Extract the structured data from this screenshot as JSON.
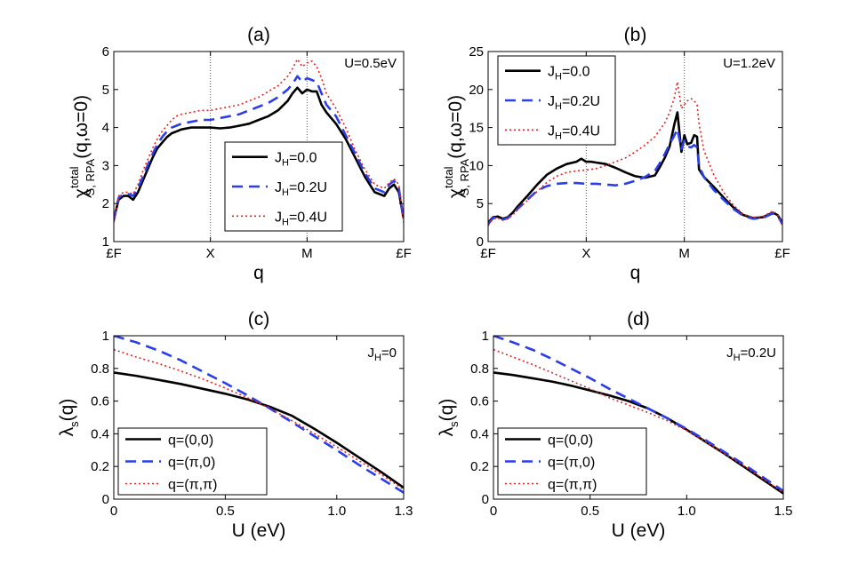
{
  "chart_data": [
    {
      "id": "a",
      "type": "line",
      "title": "(a)",
      "xlabel": "q",
      "ylabel_main": "χ",
      "ylabel_sup": "total",
      "ylabel_sub": "S, RPA",
      "ylabel_tail": "(q,ω=0)",
      "annotation": "U=0.5eV",
      "xlim": [
        0,
        3
      ],
      "ylim": [
        1,
        6
      ],
      "xticks": [
        {
          "v": 0,
          "label": "£F"
        },
        {
          "v": 1,
          "label": "X"
        },
        {
          "v": 2,
          "label": "M"
        },
        {
          "v": 3,
          "label": "£F"
        }
      ],
      "yticks": [
        {
          "v": 1,
          "label": "1"
        },
        {
          "v": 2,
          "label": "2"
        },
        {
          "v": 3,
          "label": "3"
        },
        {
          "v": 4,
          "label": "4"
        },
        {
          "v": 5,
          "label": "5"
        },
        {
          "v": 6,
          "label": "6"
        }
      ],
      "vlines": [
        1,
        2
      ],
      "legend_pos": "lower-right",
      "series": [
        {
          "name": "J",
          "sub": "H",
          "tail": "=0.0",
          "color": "#000000",
          "dash": "",
          "width": 2.6,
          "x": [
            0,
            0.05,
            0.1,
            0.15,
            0.2,
            0.25,
            0.3,
            0.35,
            0.4,
            0.45,
            0.5,
            0.55,
            0.6,
            0.65,
            0.7,
            0.8,
            0.9,
            1.0,
            1.1,
            1.2,
            1.3,
            1.4,
            1.5,
            1.6,
            1.7,
            1.8,
            1.85,
            1.9,
            1.95,
            2.0,
            2.05,
            2.1,
            2.15,
            2.2,
            2.3,
            2.4,
            2.5,
            2.6,
            2.7,
            2.8,
            2.85,
            2.9,
            2.95,
            3.0
          ],
          "y": [
            1.6,
            2.1,
            2.2,
            2.2,
            2.1,
            2.3,
            2.6,
            2.9,
            3.2,
            3.45,
            3.6,
            3.75,
            3.85,
            3.9,
            3.95,
            4.0,
            4.0,
            4.0,
            3.98,
            4.0,
            4.05,
            4.1,
            4.2,
            4.3,
            4.45,
            4.7,
            4.9,
            5.05,
            4.9,
            5.0,
            4.95,
            4.95,
            4.6,
            4.4,
            4.1,
            3.7,
            3.2,
            2.7,
            2.3,
            2.2,
            2.4,
            2.5,
            2.3,
            1.6
          ]
        },
        {
          "name": "J",
          "sub": "H",
          "tail": "=0.2U",
          "color": "#2a3fe8",
          "dash": "12,7",
          "width": 2.6,
          "x": [
            0,
            0.05,
            0.1,
            0.15,
            0.2,
            0.25,
            0.3,
            0.35,
            0.4,
            0.45,
            0.5,
            0.55,
            0.6,
            0.65,
            0.7,
            0.8,
            0.9,
            1.0,
            1.1,
            1.2,
            1.3,
            1.4,
            1.5,
            1.6,
            1.7,
            1.8,
            1.85,
            1.9,
            1.95,
            2.0,
            2.05,
            2.1,
            2.15,
            2.2,
            2.3,
            2.4,
            2.5,
            2.6,
            2.7,
            2.8,
            2.85,
            2.9,
            2.95,
            3.0
          ],
          "y": [
            1.55,
            2.15,
            2.25,
            2.25,
            2.2,
            2.4,
            2.7,
            3.0,
            3.3,
            3.55,
            3.75,
            3.9,
            4.0,
            4.05,
            4.1,
            4.15,
            4.2,
            4.2,
            4.25,
            4.3,
            4.35,
            4.45,
            4.55,
            4.65,
            4.8,
            5.0,
            5.15,
            5.35,
            5.2,
            5.3,
            5.25,
            5.2,
            4.9,
            4.6,
            4.3,
            3.8,
            3.3,
            2.8,
            2.4,
            2.3,
            2.5,
            2.6,
            2.4,
            1.55
          ]
        },
        {
          "name": "J",
          "sub": "H",
          "tail": "=0.4U",
          "color": "#e52020",
          "dash": "2,3",
          "width": 1.6,
          "x": [
            0,
            0.05,
            0.1,
            0.15,
            0.2,
            0.25,
            0.3,
            0.35,
            0.4,
            0.45,
            0.5,
            0.55,
            0.6,
            0.65,
            0.7,
            0.8,
            0.9,
            1.0,
            1.1,
            1.2,
            1.3,
            1.4,
            1.5,
            1.6,
            1.7,
            1.8,
            1.85,
            1.9,
            1.95,
            2.0,
            2.05,
            2.1,
            2.15,
            2.2,
            2.3,
            2.4,
            2.5,
            2.6,
            2.7,
            2.8,
            2.85,
            2.9,
            2.95,
            3.0
          ],
          "y": [
            1.5,
            2.2,
            2.3,
            2.3,
            2.25,
            2.5,
            2.85,
            3.15,
            3.45,
            3.7,
            3.9,
            4.05,
            4.2,
            4.3,
            4.35,
            4.4,
            4.45,
            4.45,
            4.5,
            4.55,
            4.6,
            4.7,
            4.8,
            4.95,
            5.1,
            5.35,
            5.55,
            5.8,
            5.6,
            5.7,
            5.75,
            5.6,
            5.3,
            4.9,
            4.5,
            4.0,
            3.4,
            2.9,
            2.5,
            2.4,
            2.55,
            2.65,
            2.5,
            1.5
          ]
        }
      ]
    },
    {
      "id": "b",
      "type": "line",
      "title": "(b)",
      "xlabel": "q",
      "ylabel_main": "χ",
      "ylabel_sup": "total",
      "ylabel_sub": "S, RPA",
      "ylabel_tail": "(q,ω=0)",
      "annotation": "U=1.2eV",
      "xlim": [
        0,
        3
      ],
      "ylim": [
        0,
        25
      ],
      "xticks": [
        {
          "v": 0,
          "label": "£F"
        },
        {
          "v": 1,
          "label": "X"
        },
        {
          "v": 2,
          "label": "M"
        },
        {
          "v": 3,
          "label": "£F"
        }
      ],
      "yticks": [
        {
          "v": 0,
          "label": "0"
        },
        {
          "v": 5,
          "label": "5"
        },
        {
          "v": 10,
          "label": "10"
        },
        {
          "v": 15,
          "label": "15"
        },
        {
          "v": 20,
          "label": "20"
        },
        {
          "v": 25,
          "label": "25"
        }
      ],
      "vlines": [
        1,
        2
      ],
      "legend_pos": "upper-left",
      "series": [
        {
          "name": "J",
          "sub": "H",
          "tail": "=0.0",
          "color": "#000000",
          "dash": "",
          "width": 2.6,
          "x": [
            0,
            0.05,
            0.1,
            0.15,
            0.2,
            0.25,
            0.3,
            0.4,
            0.5,
            0.6,
            0.7,
            0.8,
            0.9,
            0.95,
            1.0,
            1.05,
            1.1,
            1.2,
            1.3,
            1.4,
            1.5,
            1.6,
            1.7,
            1.75,
            1.8,
            1.85,
            1.9,
            1.93,
            1.97,
            2.0,
            2.03,
            2.07,
            2.1,
            2.13,
            2.15,
            2.2,
            2.3,
            2.4,
            2.5,
            2.6,
            2.7,
            2.8,
            2.9,
            2.95,
            3.0
          ],
          "y": [
            2.5,
            3.2,
            3.3,
            3.0,
            3.2,
            3.8,
            4.6,
            6.0,
            7.5,
            8.8,
            9.6,
            10.2,
            10.5,
            10.9,
            10.5,
            10.5,
            10.4,
            10.2,
            9.7,
            9.1,
            8.6,
            8.4,
            8.7,
            9.8,
            11.0,
            12.5,
            15.5,
            17.0,
            11.8,
            14.0,
            12.8,
            13.0,
            14.0,
            13.8,
            9.5,
            8.5,
            7.2,
            5.8,
            4.5,
            3.5,
            3.1,
            3.2,
            3.8,
            3.5,
            2.5
          ]
        },
        {
          "name": "J",
          "sub": "H",
          "tail": "=0.2U",
          "color": "#2a3fe8",
          "dash": "12,7",
          "width": 2.6,
          "x": [
            0,
            0.05,
            0.1,
            0.15,
            0.2,
            0.25,
            0.3,
            0.4,
            0.5,
            0.6,
            0.7,
            0.8,
            0.9,
            1.0,
            1.1,
            1.2,
            1.3,
            1.4,
            1.5,
            1.6,
            1.7,
            1.75,
            1.8,
            1.85,
            1.9,
            1.93,
            1.97,
            2.0,
            2.03,
            2.07,
            2.1,
            2.13,
            2.15,
            2.2,
            2.3,
            2.4,
            2.5,
            2.6,
            2.7,
            2.8,
            2.9,
            2.95,
            3.0
          ],
          "y": [
            2.3,
            3.1,
            3.2,
            2.9,
            3.1,
            3.6,
            4.3,
            5.5,
            6.7,
            7.3,
            7.6,
            7.7,
            7.7,
            7.6,
            7.6,
            7.5,
            7.4,
            7.6,
            8.0,
            8.5,
            9.3,
            10.3,
            11.5,
            12.8,
            14.0,
            14.8,
            12.2,
            13.3,
            12.5,
            12.4,
            12.7,
            12.4,
            10.0,
            8.5,
            6.8,
            5.5,
            4.3,
            3.4,
            3.0,
            3.1,
            3.7,
            3.4,
            2.3
          ]
        },
        {
          "name": "J",
          "sub": "H",
          "tail": "=0.4U",
          "color": "#e52020",
          "dash": "2,3",
          "width": 1.6,
          "x": [
            0,
            0.05,
            0.1,
            0.15,
            0.2,
            0.25,
            0.3,
            0.4,
            0.5,
            0.6,
            0.7,
            0.8,
            0.9,
            1.0,
            1.1,
            1.2,
            1.3,
            1.4,
            1.5,
            1.6,
            1.7,
            1.75,
            1.8,
            1.85,
            1.9,
            1.93,
            1.97,
            2.0,
            2.03,
            2.07,
            2.1,
            2.13,
            2.15,
            2.2,
            2.3,
            2.4,
            2.5,
            2.6,
            2.7,
            2.8,
            2.9,
            2.95,
            3.0
          ],
          "y": [
            2.1,
            3.0,
            3.1,
            2.8,
            3.0,
            3.5,
            4.2,
            5.4,
            6.6,
            7.8,
            8.6,
            9.1,
            9.3,
            9.4,
            9.6,
            10.0,
            10.5,
            11.0,
            11.8,
            12.7,
            13.8,
            14.7,
            15.6,
            17.0,
            19.0,
            21.0,
            17.5,
            18.0,
            18.5,
            18.8,
            18.5,
            18.0,
            15.5,
            12.0,
            8.8,
            6.5,
            4.8,
            3.6,
            3.2,
            3.3,
            4.0,
            3.6,
            2.1
          ]
        }
      ]
    },
    {
      "id": "c",
      "type": "line",
      "title": "(c)",
      "xlabel": "U (eV)",
      "ylabel_main": "λ",
      "ylabel_sup": "",
      "ylabel_sub": "s",
      "ylabel_tail": "(q)",
      "annotation_main": "J",
      "annotation_sub": "H",
      "annotation_tail": "=0",
      "xlim": [
        0,
        1.3
      ],
      "ylim": [
        0,
        1
      ],
      "xticks": [
        {
          "v": 0,
          "label": "0"
        },
        {
          "v": 0.5,
          "label": "0.5"
        },
        {
          "v": 1.0,
          "label": "1.0"
        },
        {
          "v": 1.3,
          "label": "1.3"
        }
      ],
      "yticks": [
        {
          "v": 0,
          "label": "0"
        },
        {
          "v": 0.2,
          "label": "0.2"
        },
        {
          "v": 0.4,
          "label": "0.4"
        },
        {
          "v": 0.6,
          "label": "0.6"
        },
        {
          "v": 0.8,
          "label": "0.8"
        },
        {
          "v": 1,
          "label": "1"
        }
      ],
      "vlines": [],
      "legend_pos": "lower-left",
      "series": [
        {
          "name": "q=(0,0)",
          "color": "#000000",
          "dash": "",
          "width": 2.6,
          "x": [
            0,
            0.1,
            0.2,
            0.3,
            0.4,
            0.5,
            0.6,
            0.7,
            0.8,
            0.9,
            1.0,
            1.1,
            1.2,
            1.3
          ],
          "y": [
            0.775,
            0.755,
            0.73,
            0.705,
            0.675,
            0.645,
            0.61,
            0.565,
            0.51,
            0.43,
            0.345,
            0.255,
            0.165,
            0.07
          ]
        },
        {
          "name": "q=(π,0)",
          "color": "#2a3fe8",
          "dash": "12,7",
          "width": 2.6,
          "x": [
            0,
            0.1,
            0.2,
            0.3,
            0.4,
            0.5,
            0.6,
            0.7,
            0.8,
            0.9,
            1.0,
            1.1,
            1.2,
            1.3
          ],
          "y": [
            1.0,
            0.96,
            0.91,
            0.85,
            0.78,
            0.71,
            0.635,
            0.555,
            0.47,
            0.385,
            0.3,
            0.21,
            0.125,
            0.04
          ]
        },
        {
          "name": "q=(π,π)",
          "color": "#e52020",
          "dash": "2,3",
          "width": 1.6,
          "x": [
            0,
            0.1,
            0.2,
            0.3,
            0.4,
            0.5,
            0.6,
            0.7,
            0.8,
            0.9,
            1.0,
            1.1,
            1.2,
            1.3
          ],
          "y": [
            0.915,
            0.87,
            0.83,
            0.785,
            0.735,
            0.68,
            0.62,
            0.555,
            0.48,
            0.4,
            0.32,
            0.235,
            0.15,
            0.06
          ]
        }
      ]
    },
    {
      "id": "d",
      "type": "line",
      "title": "(d)",
      "xlabel": "U (eV)",
      "ylabel_main": "λ",
      "ylabel_sup": "",
      "ylabel_sub": "s",
      "ylabel_tail": "(q)",
      "annotation_main": "J",
      "annotation_sub": "H",
      "annotation_tail": "=0.2U",
      "xlim": [
        0,
        1.5
      ],
      "ylim": [
        0,
        1
      ],
      "xticks": [
        {
          "v": 0,
          "label": "0"
        },
        {
          "v": 0.5,
          "label": "0.5"
        },
        {
          "v": 1.0,
          "label": "1.0"
        },
        {
          "v": 1.5,
          "label": "1.5"
        }
      ],
      "yticks": [
        {
          "v": 0,
          "label": "0"
        },
        {
          "v": 0.2,
          "label": "0.2"
        },
        {
          "v": 0.4,
          "label": "0.4"
        },
        {
          "v": 0.6,
          "label": "0.6"
        },
        {
          "v": 0.8,
          "label": "0.8"
        },
        {
          "v": 1,
          "label": "1"
        }
      ],
      "vlines": [],
      "legend_pos": "lower-left",
      "series": [
        {
          "name": "q=(0,0)",
          "color": "#000000",
          "dash": "",
          "width": 2.6,
          "x": [
            0,
            0.1,
            0.2,
            0.3,
            0.4,
            0.5,
            0.6,
            0.7,
            0.8,
            0.9,
            1.0,
            1.1,
            1.2,
            1.3,
            1.4,
            1.5
          ],
          "y": [
            0.775,
            0.76,
            0.74,
            0.72,
            0.695,
            0.665,
            0.635,
            0.6,
            0.555,
            0.495,
            0.425,
            0.35,
            0.275,
            0.195,
            0.115,
            0.035
          ]
        },
        {
          "name": "q=(π,0)",
          "color": "#2a3fe8",
          "dash": "12,7",
          "width": 2.6,
          "x": [
            0,
            0.1,
            0.2,
            0.3,
            0.4,
            0.5,
            0.6,
            0.7,
            0.8,
            0.9,
            1.0,
            1.1,
            1.2,
            1.3,
            1.4,
            1.5
          ],
          "y": [
            1.0,
            0.96,
            0.915,
            0.86,
            0.8,
            0.74,
            0.675,
            0.615,
            0.555,
            0.495,
            0.43,
            0.36,
            0.285,
            0.21,
            0.13,
            0.05
          ]
        },
        {
          "name": "q=(π,π)",
          "color": "#e52020",
          "dash": "2,3",
          "width": 1.6,
          "x": [
            0,
            0.1,
            0.2,
            0.3,
            0.4,
            0.5,
            0.6,
            0.7,
            0.8,
            0.9,
            1.0,
            1.1,
            1.2,
            1.3,
            1.4,
            1.5
          ],
          "y": [
            0.915,
            0.87,
            0.825,
            0.775,
            0.725,
            0.675,
            0.62,
            0.575,
            0.53,
            0.48,
            0.42,
            0.35,
            0.275,
            0.2,
            0.12,
            0.04
          ]
        }
      ]
    }
  ]
}
